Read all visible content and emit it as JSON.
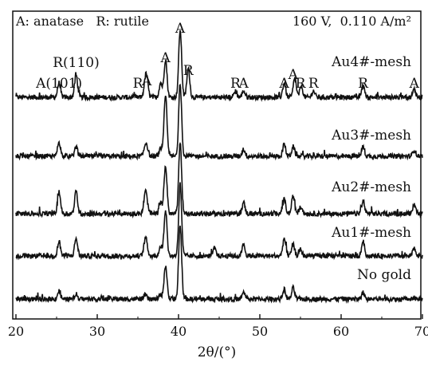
{
  "chart_data": {
    "type": "line",
    "title": "",
    "xlabel": "2θ/(°)",
    "ylabel": "",
    "xlim": [
      20,
      70
    ],
    "xticks": [
      20,
      30,
      40,
      50,
      60,
      70
    ],
    "legend_left": "A: anatase   R: rutile",
    "legend_right": "160 V,  0.110 A/m²",
    "grid": false,
    "line_color": "#111111",
    "series": [
      {
        "name": "Au4#-mesh",
        "peaks": [
          [
            25.3,
            18
          ],
          [
            27.4,
            28
          ],
          [
            35.9,
            15
          ],
          [
            36.1,
            20
          ],
          [
            37.8,
            18
          ],
          [
            38.4,
            48
          ],
          [
            40.2,
            84
          ],
          [
            41.2,
            36
          ],
          [
            47.0,
            8
          ],
          [
            48.0,
            8
          ],
          [
            53.0,
            18
          ],
          [
            54.3,
            24
          ],
          [
            55.1,
            14
          ],
          [
            56.6,
            8
          ],
          [
            62.7,
            15
          ],
          [
            69.0,
            10
          ]
        ]
      },
      {
        "name": "Au3#-mesh",
        "peaks": [
          [
            25.3,
            18
          ],
          [
            27.4,
            12
          ],
          [
            35.9,
            10
          ],
          [
            36.1,
            10
          ],
          [
            37.8,
            9
          ],
          [
            38.4,
            76
          ],
          [
            40.2,
            90
          ],
          [
            48.0,
            9
          ],
          [
            53.0,
            15
          ],
          [
            54.1,
            12
          ],
          [
            62.7,
            12
          ],
          [
            69.0,
            8
          ]
        ]
      },
      {
        "name": "Au2#-mesh",
        "peaks": [
          [
            25.3,
            28
          ],
          [
            27.4,
            28
          ],
          [
            35.9,
            22
          ],
          [
            36.1,
            10
          ],
          [
            37.8,
            14
          ],
          [
            38.4,
            60
          ],
          [
            40.2,
            88
          ],
          [
            48.0,
            14
          ],
          [
            53.0,
            18
          ],
          [
            54.1,
            22
          ],
          [
            55.0,
            8
          ],
          [
            62.7,
            16
          ],
          [
            69.0,
            12
          ]
        ]
      },
      {
        "name": "Au1#-mesh",
        "peaks": [
          [
            25.3,
            18
          ],
          [
            27.4,
            22
          ],
          [
            35.9,
            18
          ],
          [
            36.1,
            8
          ],
          [
            37.8,
            12
          ],
          [
            38.4,
            58
          ],
          [
            40.2,
            90
          ],
          [
            44.4,
            10
          ],
          [
            48.0,
            14
          ],
          [
            53.0,
            22
          ],
          [
            54.1,
            14
          ],
          [
            55.0,
            8
          ],
          [
            62.7,
            18
          ],
          [
            69.0,
            10
          ]
        ]
      },
      {
        "name": "No gold",
        "peaks": [
          [
            25.3,
            10
          ],
          [
            27.4,
            6
          ],
          [
            35.9,
            5
          ],
          [
            37.8,
            5
          ],
          [
            38.4,
            42
          ],
          [
            40.2,
            92
          ],
          [
            48.0,
            8
          ],
          [
            53.0,
            12
          ],
          [
            54.1,
            14
          ],
          [
            62.7,
            8
          ]
        ]
      }
    ],
    "peak_annotations": [
      {
        "text": "A(101)",
        "x": 25.3
      },
      {
        "text": "R(110)",
        "x": 27.4
      },
      {
        "text": "R",
        "x": 35.0
      },
      {
        "text": "A",
        "x": 36.1
      },
      {
        "text": "A",
        "x": 38.4
      },
      {
        "text": "A",
        "x": 40.2
      },
      {
        "text": "R",
        "x": 41.2
      },
      {
        "text": "R",
        "x": 47.0
      },
      {
        "text": "A",
        "x": 48.0
      },
      {
        "text": "A",
        "x": 53.0
      },
      {
        "text": "A",
        "x": 54.1
      },
      {
        "text": "R",
        "x": 55.0
      },
      {
        "text": "R",
        "x": 56.6
      },
      {
        "text": "R",
        "x": 62.7
      },
      {
        "text": "A",
        "x": 69.0
      }
    ]
  }
}
